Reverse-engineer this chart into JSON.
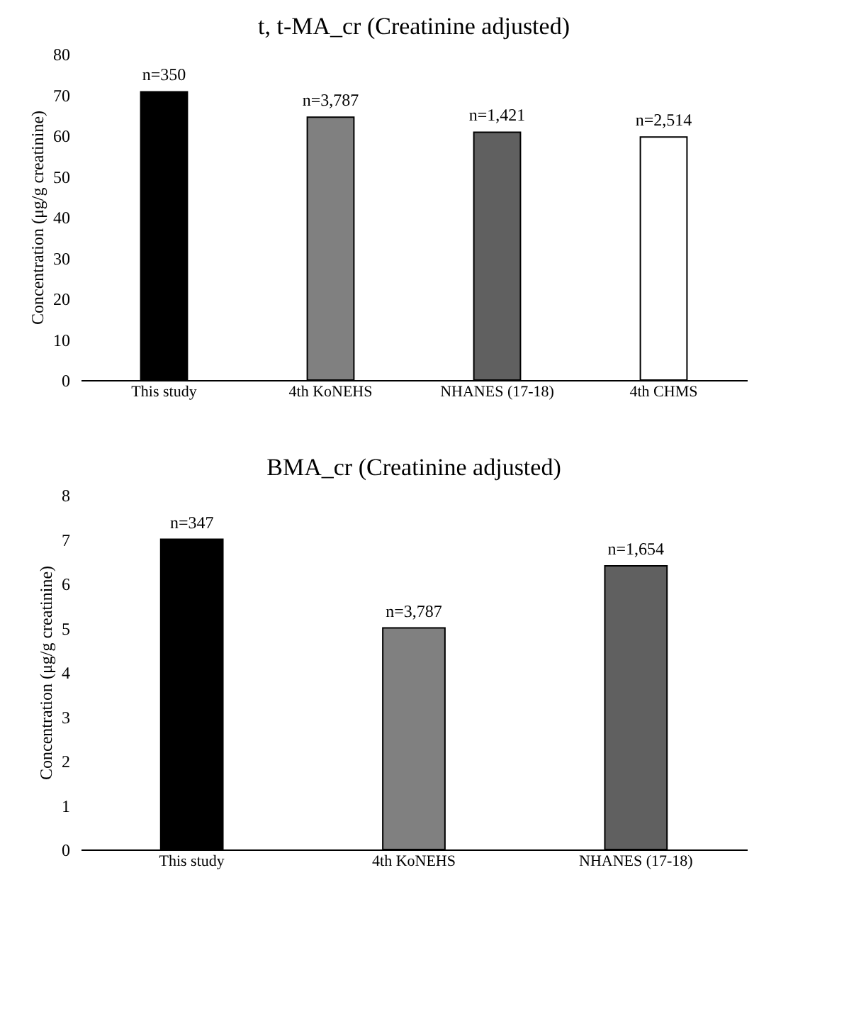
{
  "chart_data": [
    {
      "type": "bar",
      "title": "t, t-MA_cr (Creatinine  adjusted)",
      "ylabel": "Concentration (μg/g creatinine)",
      "categories": [
        "This study",
        "4th KoNEHS",
        "NHANES (17-18)",
        "4th CHMS"
      ],
      "values": [
        70.7,
        64.5,
        60.8,
        59.6
      ],
      "colors": [
        "#000000",
        "#808080",
        "#606060",
        "#ffffff"
      ],
      "ylim": [
        0,
        80
      ],
      "yticks": [
        0,
        10,
        20,
        30,
        40,
        50,
        60,
        70,
        80
      ],
      "grid": false,
      "annotations": [
        {
          "text": "n=350",
          "x": "This study",
          "y": 70.7
        },
        {
          "text": "n=3,787",
          "x": "4th KoNEHS",
          "y": 64.5
        },
        {
          "text": "n=1,421",
          "x": "NHANES (17-18)",
          "y": 60.8
        },
        {
          "text": "n=2,514",
          "x": "4th CHMS",
          "y": 59.6
        }
      ]
    },
    {
      "type": "bar",
      "title": "BMA_cr (Creatinine  adjusted)",
      "ylabel": "Concentration (μg/g creatinine)",
      "categories": [
        "This study",
        "4th KoNEHS",
        "NHANES (17-18)"
      ],
      "values": [
        7.0,
        5.0,
        6.4
      ],
      "colors": [
        "#000000",
        "#808080",
        "#606060"
      ],
      "ylim": [
        0,
        8
      ],
      "yticks": [
        0,
        1,
        2,
        3,
        4,
        5,
        6,
        7,
        8
      ],
      "grid": false,
      "annotations": [
        {
          "text": "n=347",
          "x": "This study",
          "y": 7.0
        },
        {
          "text": "n=3,787",
          "x": "4th KoNEHS",
          "y": 5.0
        },
        {
          "text": "n=1,654",
          "x": "NHANES (17-18)",
          "y": 6.4
        }
      ]
    }
  ]
}
